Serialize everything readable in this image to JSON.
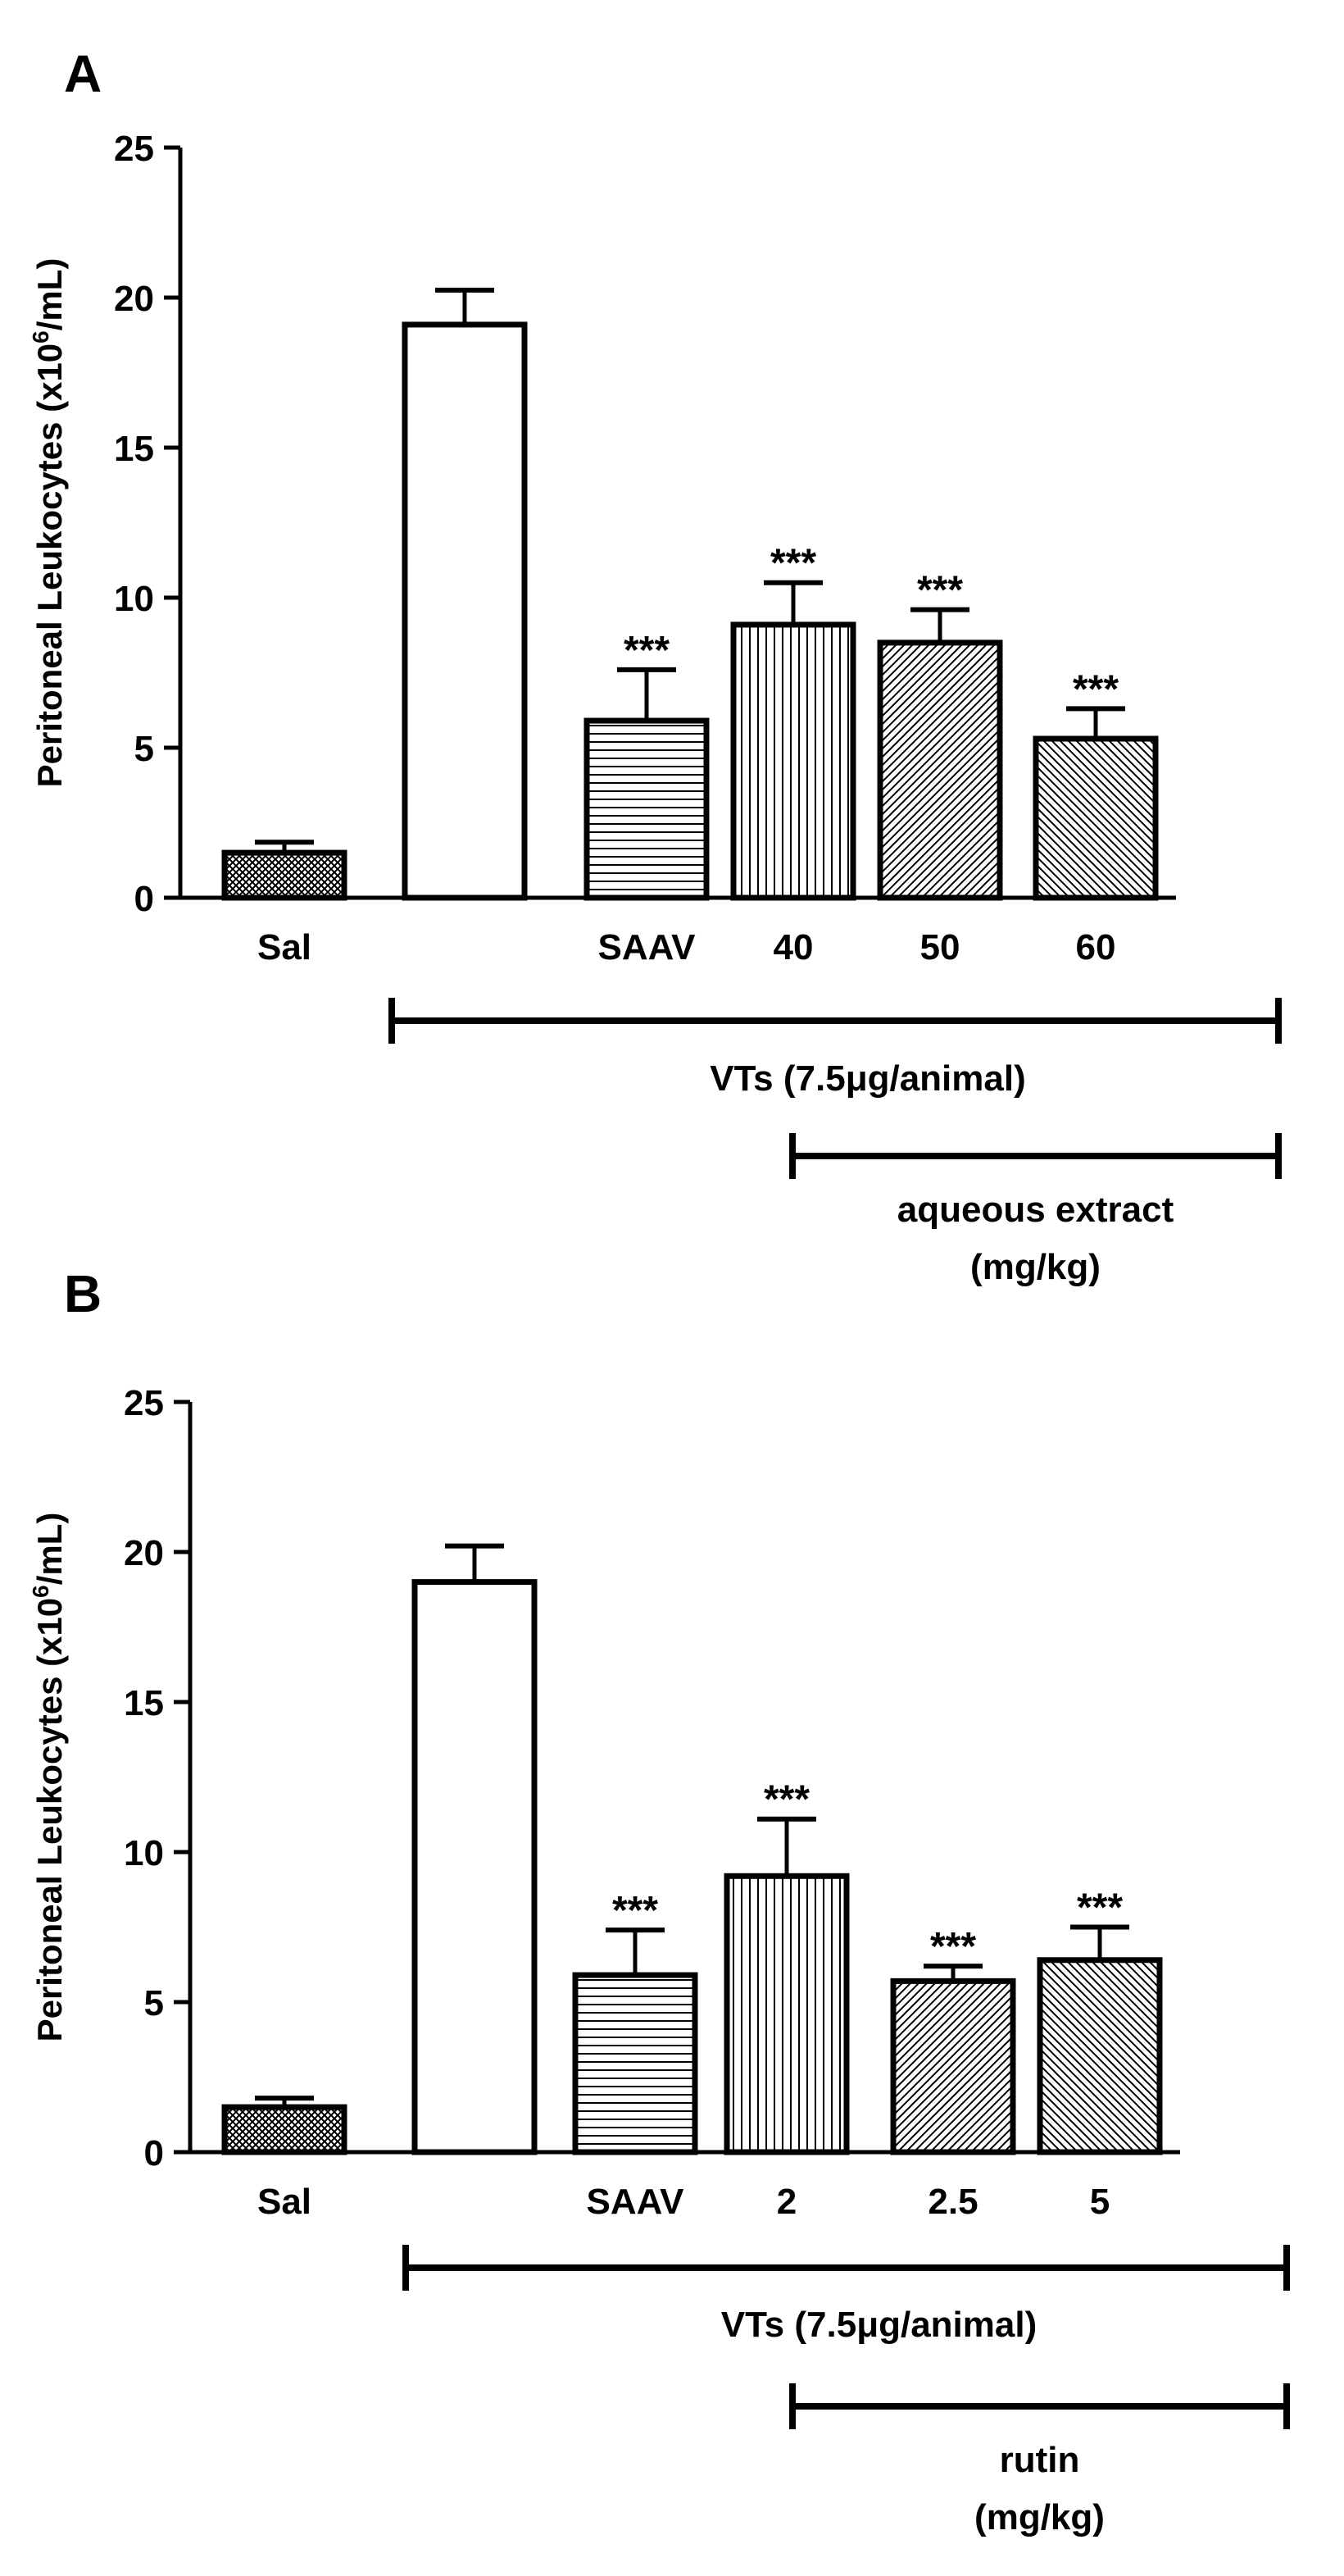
{
  "chart_data": [
    {
      "type": "bar",
      "panel_label": "A",
      "ylabel_prefix": "Peritoneal Leukocytes (x10",
      "ylabel_sup": "6",
      "ylabel_suffix": "/mL)",
      "xlabel": "",
      "ylim": [
        0,
        25
      ],
      "yticks": [
        "0",
        "5",
        "10",
        "15",
        "20",
        "25"
      ],
      "categories": [
        "Sal",
        "",
        "SAAV",
        "40",
        "50",
        "60"
      ],
      "values": [
        1.5,
        19.1,
        5.9,
        9.1,
        8.5,
        5.3
      ],
      "errors": [
        0.35,
        1.15,
        1.7,
        1.4,
        1.1,
        1.0
      ],
      "fills": [
        "crosshatch",
        "white",
        "horizontal",
        "vertical",
        "diagonal-right",
        "diagonal-left"
      ],
      "significance": [
        "",
        "",
        "***",
        "***",
        "***",
        "***"
      ],
      "brackets": [
        {
          "from": 1,
          "to": 5,
          "label_lines": [
            "VTs (7.5μg/animal)"
          ]
        },
        {
          "from": 3,
          "to": 5,
          "label_lines": [
            "aqueous extract",
            "(mg/kg)"
          ]
        }
      ]
    },
    {
      "type": "bar",
      "panel_label": "B",
      "ylabel_prefix": "Peritoneal Leukocytes (x10",
      "ylabel_sup": "6",
      "ylabel_suffix": "/mL)",
      "xlabel": "",
      "ylim": [
        0,
        25
      ],
      "yticks": [
        "0",
        "5",
        "10",
        "15",
        "20",
        "25"
      ],
      "categories": [
        "Sal",
        "",
        "SAAV",
        "2",
        "2.5",
        "5"
      ],
      "values": [
        1.5,
        19.0,
        5.9,
        9.2,
        5.7,
        6.4
      ],
      "errors": [
        0.3,
        1.2,
        1.5,
        1.9,
        0.5,
        1.1
      ],
      "fills": [
        "crosshatch",
        "white",
        "horizontal",
        "vertical",
        "diagonal-right",
        "diagonal-left"
      ],
      "significance": [
        "",
        "",
        "***",
        "***",
        "***",
        "***"
      ],
      "brackets": [
        {
          "from": 1,
          "to": 5,
          "label_lines": [
            "VTs (7.5μg/animal)"
          ]
        },
        {
          "from": 3,
          "to": 5,
          "label_lines": [
            "rutin",
            "(mg/kg)"
          ]
        }
      ]
    }
  ]
}
